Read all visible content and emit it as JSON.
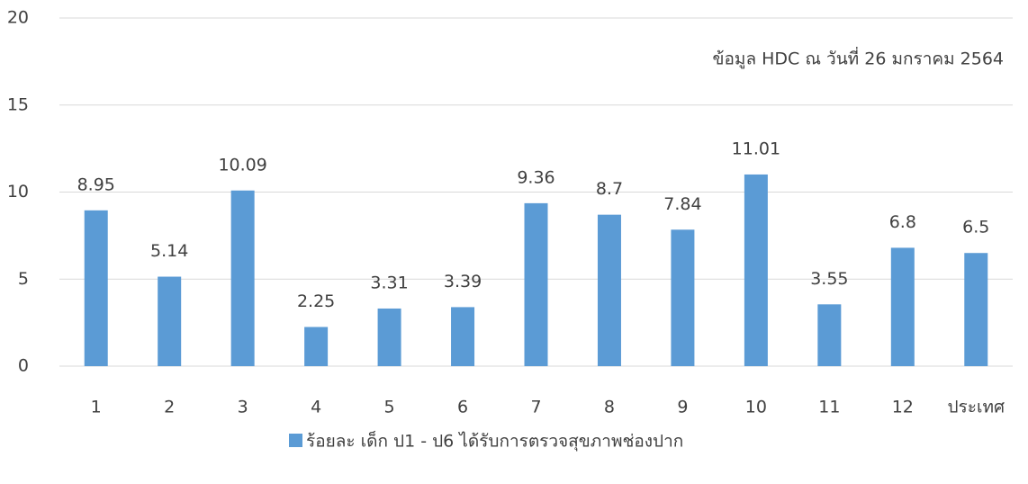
{
  "chart_data": {
    "type": "bar",
    "annotation": "ข้อมูล HDC ณ วันที่ 26 มกราคม 2564",
    "categories": [
      "1",
      "2",
      "3",
      "4",
      "5",
      "6",
      "7",
      "8",
      "9",
      "10",
      "11",
      "12",
      "ประเทศ"
    ],
    "series": [
      {
        "name": "ร้อยละ เด็ก ป1 - ป6 ได้รับการตรวจสุขภาพช่องปาก",
        "color": "#5b9bd5",
        "values": [
          8.95,
          5.14,
          10.09,
          2.25,
          3.31,
          3.39,
          9.36,
          8.7,
          7.84,
          11.01,
          3.55,
          6.8,
          6.5
        ]
      }
    ],
    "ylim": [
      0,
      20
    ],
    "yticks": [
      0,
      5,
      10,
      15,
      20
    ],
    "grid": true,
    "legend": "bottom"
  }
}
